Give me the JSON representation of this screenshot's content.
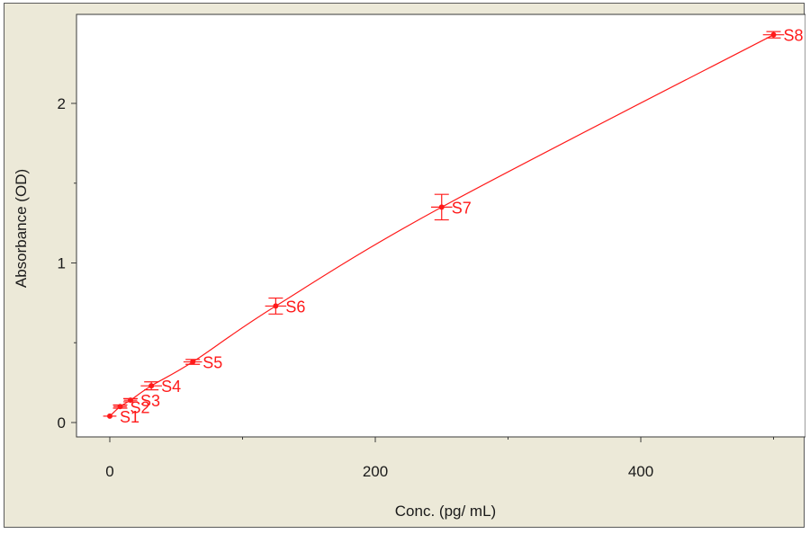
{
  "chart_data": {
    "type": "scatter",
    "xlabel": "Conc. (pg/ mL)",
    "ylabel": "Absorbance (OD)",
    "xlim": [
      -20,
      525
    ],
    "ylim": [
      -0.08,
      2.5
    ],
    "x_ticks": [
      0,
      200,
      400
    ],
    "x_minor_ticks": [
      100,
      300,
      500
    ],
    "y_ticks": [
      0,
      1,
      2
    ],
    "y_minor_ticks": [
      0.5,
      1.5
    ],
    "grid": false,
    "legend": "none",
    "color": "#ff1a1a",
    "points": [
      {
        "label": "S1",
        "x": 0,
        "y": 0.04,
        "err": 0.005,
        "xerr": 5
      },
      {
        "label": "S2",
        "x": 7.8,
        "y": 0.1,
        "err": 0.01,
        "xerr": 5
      },
      {
        "label": "S3",
        "x": 15.6,
        "y": 0.14,
        "err": 0.01,
        "xerr": 5
      },
      {
        "label": "S4",
        "x": 31.3,
        "y": 0.23,
        "err": 0.025,
        "xerr": 8
      },
      {
        "label": "S5",
        "x": 62.5,
        "y": 0.38,
        "err": 0.015,
        "xerr": 7
      },
      {
        "label": "S6",
        "x": 125,
        "y": 0.73,
        "err": 0.05,
        "xerr": 8
      },
      {
        "label": "S7",
        "x": 250,
        "y": 1.35,
        "err": 0.08,
        "xerr": 8
      },
      {
        "label": "S8",
        "x": 500,
        "y": 2.43,
        "err": 0.02,
        "xerr": 8
      }
    ]
  }
}
